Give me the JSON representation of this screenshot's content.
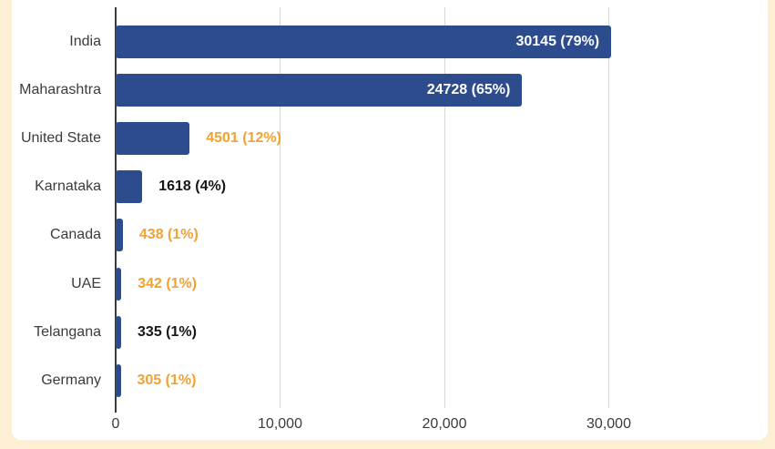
{
  "frame": {
    "background_color": "#fcefd3",
    "card_color": "#ffffff"
  },
  "chart_data": {
    "type": "bar",
    "orientation": "horizontal",
    "title": "",
    "categories": [
      "India",
      "Maharashtra",
      "United State",
      "Karnataka",
      "Canada",
      "UAE",
      "Telangana",
      "Germany"
    ],
    "values": [
      30145,
      24728,
      4501,
      1618,
      438,
      342,
      335,
      305
    ],
    "value_labels": [
      "30145 (79%)",
      "24728 (65%)",
      "4501 (12%)",
      "1618 (4%)",
      "438 (1%)",
      "342 (1%)",
      "335 (1%)",
      "305 (1%)"
    ],
    "percentages": [
      79,
      65,
      12,
      4,
      1,
      1,
      1,
      1
    ],
    "value_label_styles": [
      "inside-white",
      "inside-white",
      "outside-orange",
      "outside-black",
      "outside-orange",
      "outside-orange",
      "outside-black",
      "outside-orange"
    ],
    "bar_color": "#2c4c8e",
    "label_colors": {
      "inside-white": "#ffffff",
      "outside-orange": "#f0a232",
      "outside-black": "#161616"
    },
    "axis": {
      "x_ticks": [
        {
          "value": 0,
          "label": "0"
        },
        {
          "value": 10000,
          "label": "10,000"
        },
        {
          "value": 20000,
          "label": "20,000"
        },
        {
          "value": 30000,
          "label": "30,000"
        }
      ],
      "gridline_color": "#d8d8d8",
      "axis_line_color": "#3c3c3c",
      "tick_label_color": "#3b3b3b"
    },
    "xlim": [
      0,
      38200
    ],
    "grid": "vertical-only",
    "legend_position": "none"
  }
}
